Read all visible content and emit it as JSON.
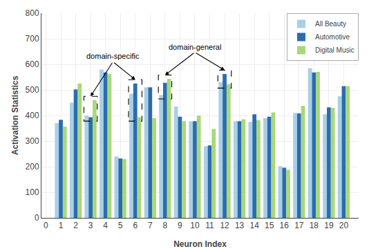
{
  "chart_data": {
    "type": "bar",
    "x": [
      1,
      2,
      3,
      4,
      5,
      6,
      7,
      8,
      9,
      10,
      11,
      12,
      13,
      14,
      15,
      16,
      17,
      18,
      19,
      20
    ],
    "series": [
      {
        "name": "All Beauty",
        "color": "#a8d0e6",
        "values": [
          370,
          450,
          400,
          580,
          240,
          485,
          510,
          480,
          435,
          378,
          280,
          530,
          378,
          375,
          390,
          202,
          410,
          585,
          405,
          475
        ]
      },
      {
        "name": "Automotive",
        "color": "#2b6cb0",
        "values": [
          383,
          502,
          393,
          568,
          232,
          525,
          510,
          528,
          395,
          378,
          283,
          562,
          378,
          405,
          395,
          196,
          408,
          568,
          432,
          515
        ]
      },
      {
        "name": "Digital Music",
        "color": "#a8d87a",
        "values": [
          357,
          525,
          460,
          562,
          230,
          393,
          390,
          543,
          378,
          400,
          347,
          522,
          385,
          382,
          412,
          188,
          438,
          570,
          430,
          515
        ]
      }
    ],
    "xlabel": "Neuron Index",
    "ylabel": "Activation Statistics",
    "xlim": [
      -0.3,
      21.0
    ],
    "xticks": [
      0,
      1,
      2,
      3,
      4,
      5,
      6,
      7,
      8,
      9,
      10,
      11,
      12,
      13,
      14,
      15,
      16,
      17,
      18,
      19,
      20
    ],
    "ylim": [
      0,
      800
    ],
    "yticks": [
      0,
      100,
      200,
      300,
      400,
      500,
      600,
      700,
      800
    ],
    "grid": true,
    "legend": "upper right",
    "annotations": [
      {
        "text": "domain-specific",
        "x": [
          3,
          6
        ]
      },
      {
        "text": "domain-general",
        "x": [
          8,
          12
        ]
      }
    ]
  }
}
